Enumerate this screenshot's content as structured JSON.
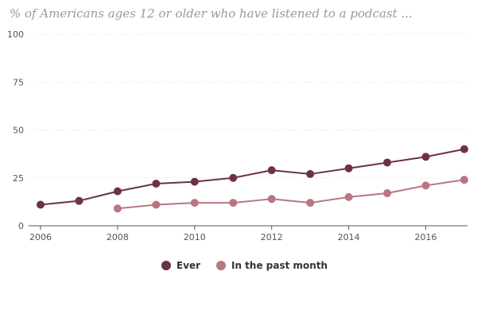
{
  "chart_data": {
    "type": "line",
    "title": "% of Americans ages 12 or older who have listened to a podcast ...",
    "xlabel": "",
    "ylabel": "",
    "xlim": [
      2006,
      2017
    ],
    "ylim": [
      0,
      100
    ],
    "x_ticks": [
      2006,
      2008,
      2010,
      2012,
      2014,
      2016
    ],
    "y_ticks": [
      0,
      25,
      50,
      75,
      100
    ],
    "grid": true,
    "legend_position": "bottom-center",
    "series": [
      {
        "name": "Ever",
        "color": "#6b3344",
        "x": [
          2006,
          2007,
          2008,
          2009,
          2010,
          2011,
          2012,
          2013,
          2014,
          2015,
          2016,
          2017
        ],
        "values": [
          11,
          13,
          18,
          22,
          23,
          25,
          29,
          27,
          30,
          33,
          36,
          40
        ]
      },
      {
        "name": "In the past month",
        "color": "#b97680",
        "x": [
          2008,
          2009,
          2010,
          2011,
          2012,
          2013,
          2014,
          2015,
          2016,
          2017
        ],
        "values": [
          9,
          11,
          12,
          12,
          14,
          12,
          15,
          17,
          21,
          24
        ]
      }
    ]
  }
}
